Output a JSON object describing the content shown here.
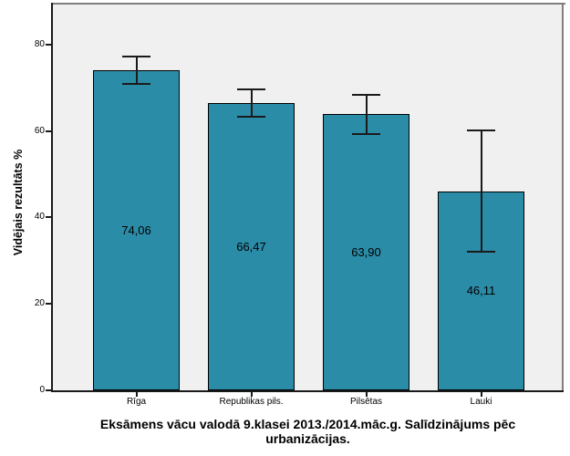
{
  "chart_data": {
    "type": "bar",
    "title": "Eksāmens vācu valodā 9.klasei 2013./2014.māc.g. Salīdzinājums pēc urbanizācijas.",
    "title_lines": [
      "Eksāmens vācu valodā 9.klasei 2013./2014.māc.g. Salīdzinājums pēc",
      "urbanizācijas."
    ],
    "ylabel": "Vidējais rezultāts %",
    "xlabel": "",
    "categories": [
      "Rīga",
      "Republikas pils.",
      "Pilsētas",
      "Lauki"
    ],
    "values": [
      74.06,
      66.47,
      63.9,
      46.11
    ],
    "value_labels": [
      "74,06",
      "66,47",
      "63,90",
      "46,11"
    ],
    "error_low": [
      70.9,
      63.4,
      59.4,
      32.0
    ],
    "error_high": [
      77.3,
      69.6,
      68.4,
      60.2
    ],
    "yticks": [
      0,
      20,
      40,
      60,
      80
    ],
    "ytick_labels": [
      "0",
      "20",
      "40",
      "60",
      "80"
    ],
    "ylim": [
      0,
      89.7
    ],
    "grid": false,
    "legend_position": "none",
    "colors": {
      "bar_fill": "#2B8CA8",
      "bar_border": "#000000",
      "error_bar": "#1a1a1a",
      "plot_background": "#F0F0F0",
      "frame_border": "#7F7F7F",
      "axis": "#1a1a1a",
      "text": "#000000",
      "figure_background": "#FFFFFF"
    }
  }
}
